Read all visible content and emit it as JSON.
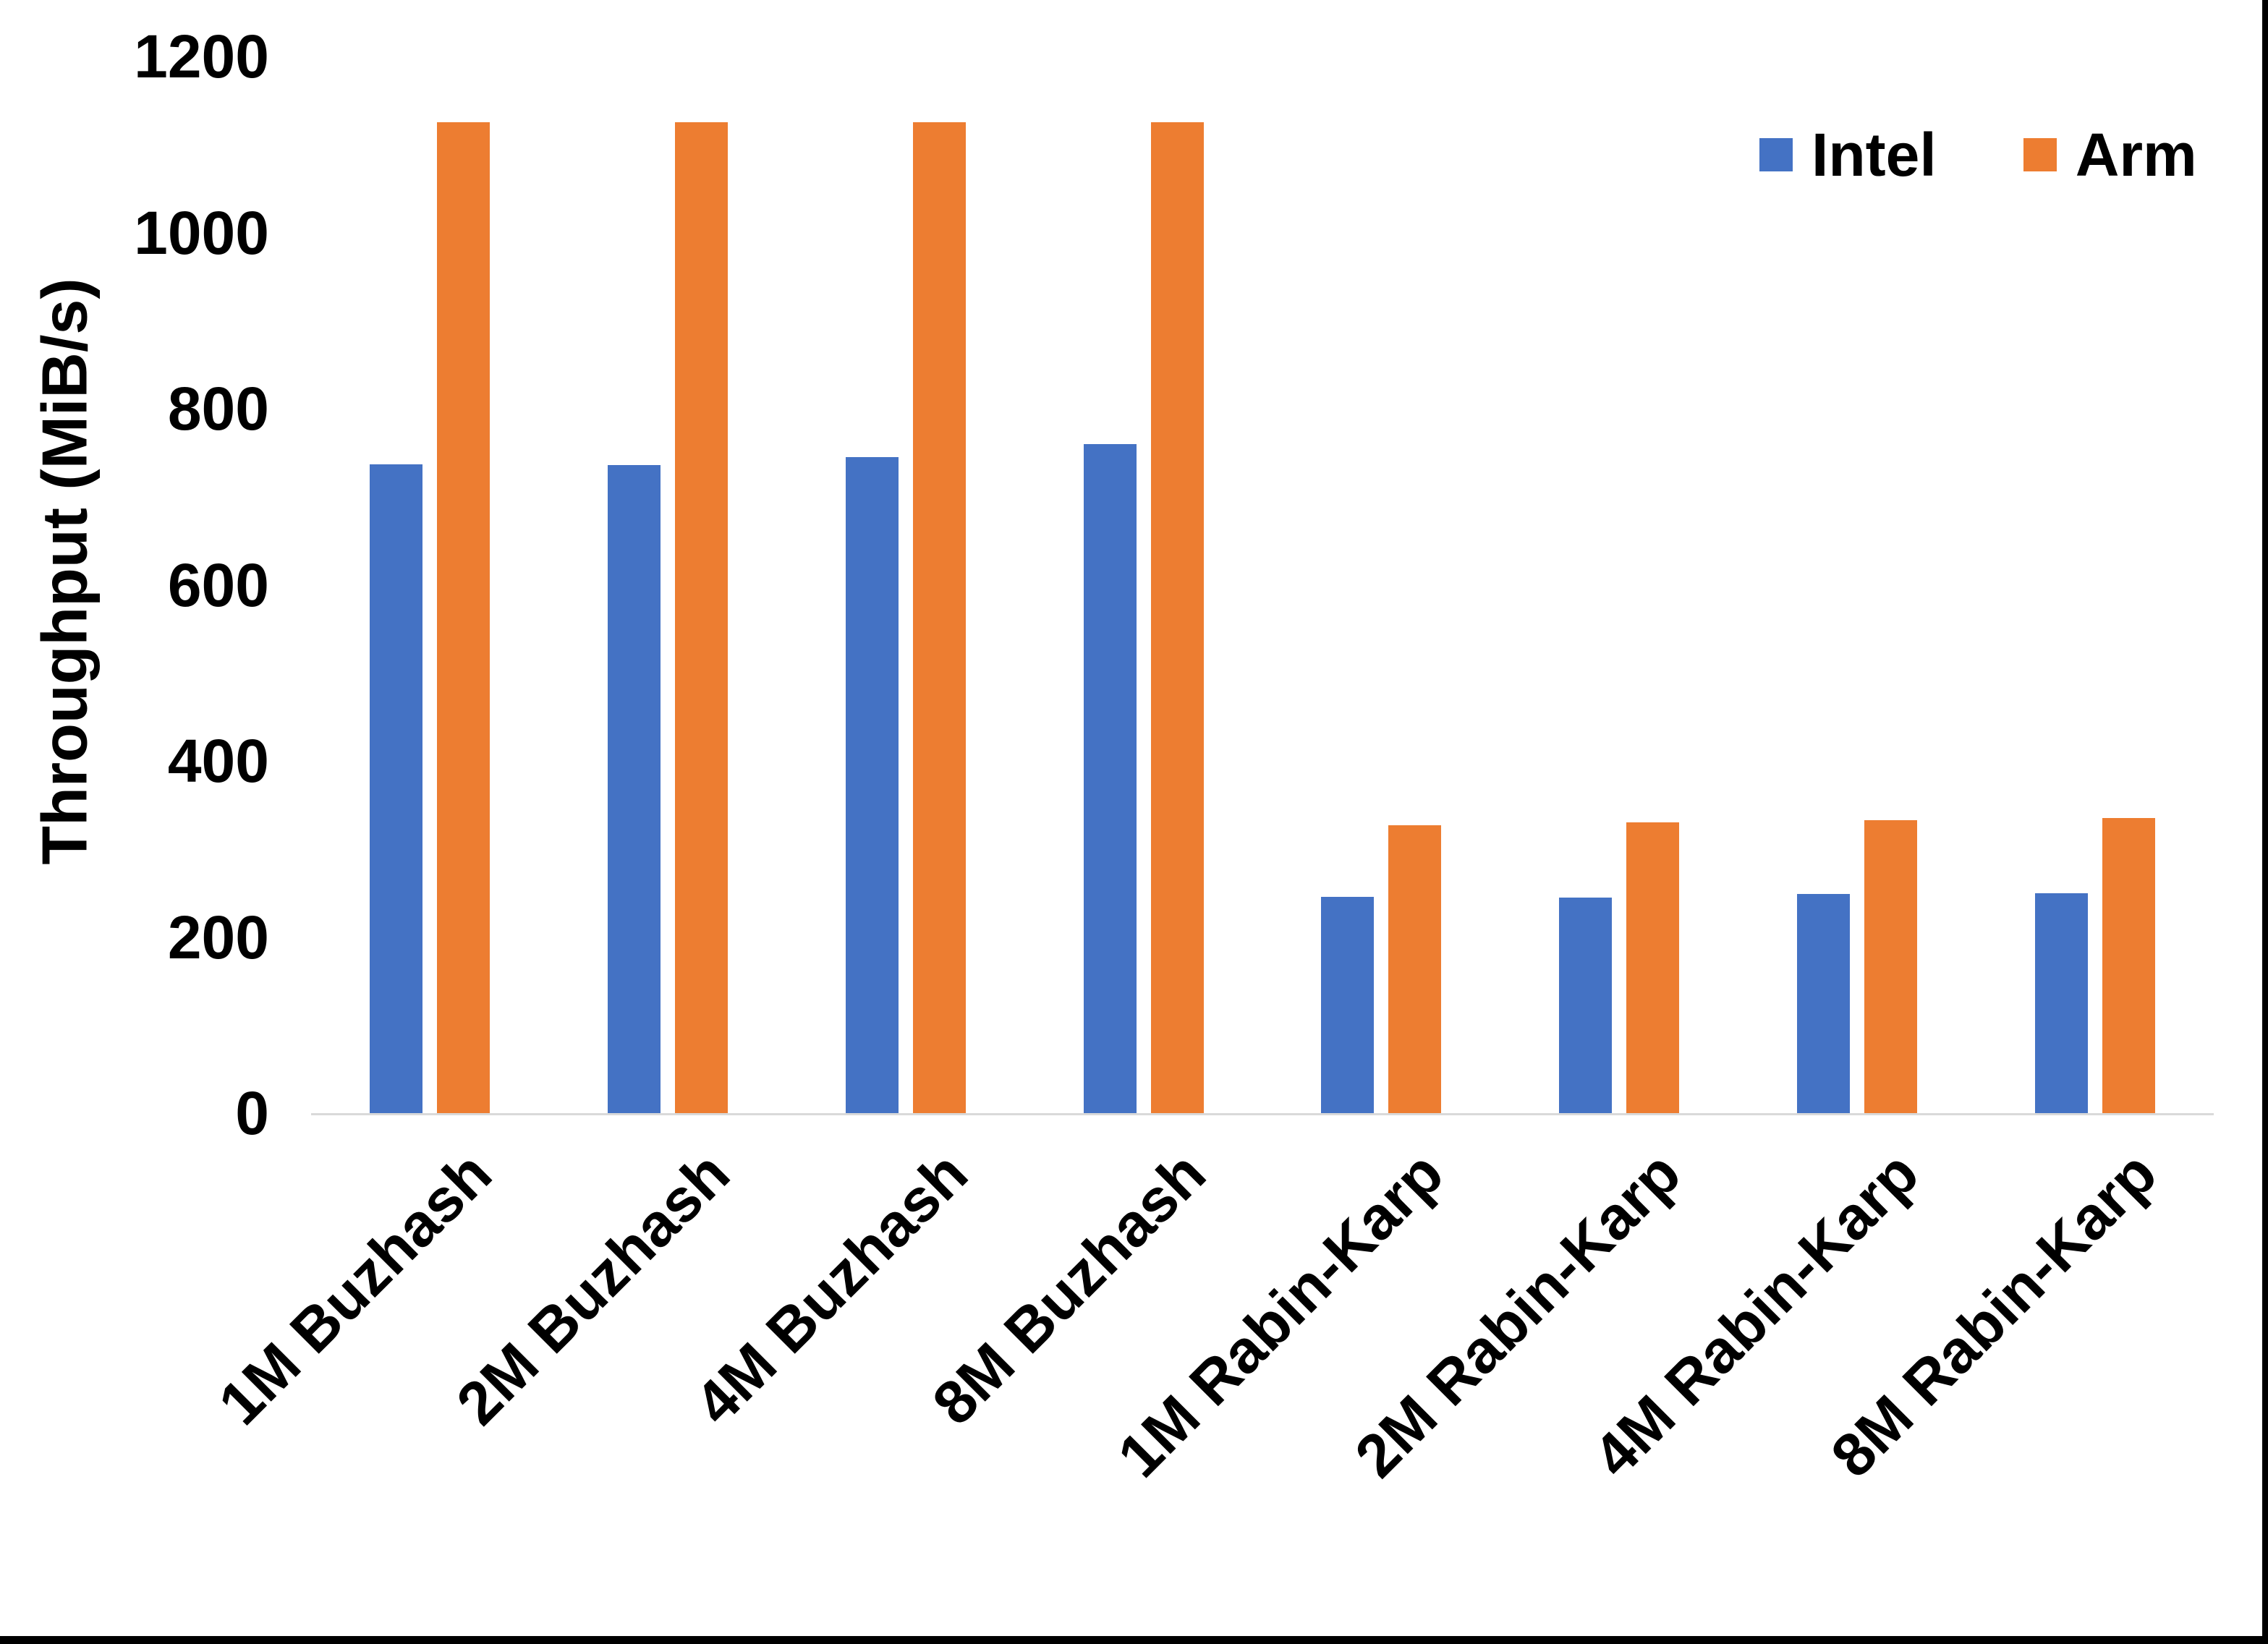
{
  "chart_data": {
    "type": "bar",
    "title": "",
    "xlabel": "",
    "ylabel": "Throughput (MiB/s)",
    "categories": [
      "1M Buzhash",
      "2M Buzhash",
      "4M Buzhash",
      "8M Buzhash",
      "1M Rabin-Karp",
      "2M Rabin-Karp",
      "4M Rabin-Karp",
      "8M Rabin-Karp"
    ],
    "series": [
      {
        "name": "Intel",
        "color": "#4472C4",
        "values": [
          737,
          736,
          745,
          760,
          246,
          245,
          249,
          250
        ]
      },
      {
        "name": "Arm",
        "color": "#ED7D31",
        "values": [
          1125,
          1125,
          1125,
          1125,
          327,
          330,
          333,
          335
        ]
      }
    ],
    "ylim": [
      0,
      1200
    ],
    "yticks": [
      1200,
      1000,
      800,
      600,
      400,
      200,
      0
    ],
    "grid": false,
    "legend_position": "top-right"
  },
  "colors": {
    "background": "#FFFFFF",
    "axis_line": "#D9D9D9",
    "text": "#000000",
    "screenshot_border": "#000000"
  }
}
